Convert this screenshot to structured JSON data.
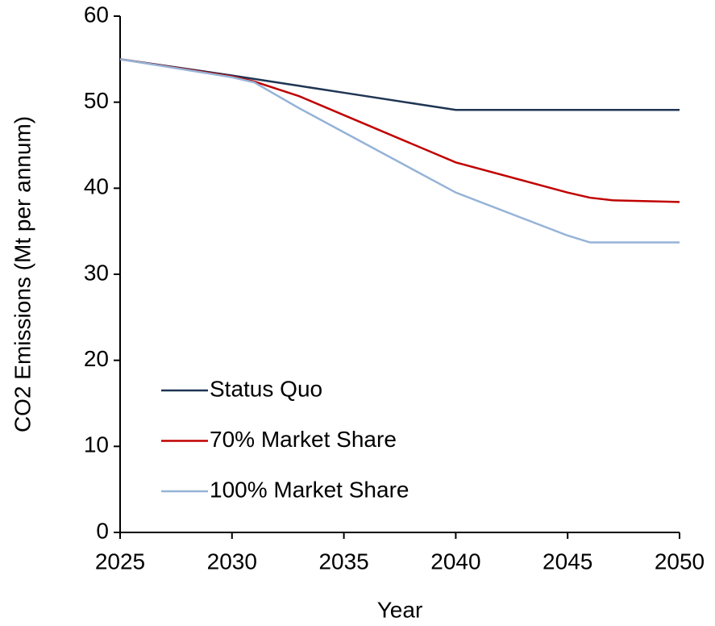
{
  "chart_data": {
    "type": "line",
    "xlabel": "Year",
    "ylabel": "CO2 Emissions (Mt per annum)",
    "x": [
      2025,
      2030,
      2031,
      2033,
      2035,
      2040,
      2045,
      2046,
      2047,
      2050
    ],
    "series": [
      {
        "name": "Status Quo",
        "color": "#1f3553",
        "values": [
          55,
          53.1,
          52.7,
          51.9,
          51.1,
          49.1,
          49.1,
          49.1,
          49.1,
          49.1
        ]
      },
      {
        "name": "70% Market Share",
        "color": "#c00000",
        "values": [
          55,
          53,
          52.4,
          50.7,
          48.5,
          43,
          39.5,
          38.9,
          38.6,
          38.4
        ]
      },
      {
        "name": "100% Market Share",
        "color": "#95b3d7",
        "values": [
          55,
          52.9,
          52.3,
          49.3,
          46.5,
          39.5,
          34.5,
          33.7,
          33.7,
          33.7
        ]
      }
    ],
    "xlim": [
      2025,
      2050
    ],
    "xticks": [
      2025,
      2030,
      2035,
      2040,
      2045,
      2050
    ],
    "ylim": [
      0,
      60
    ],
    "yticks": [
      0,
      10,
      20,
      30,
      40,
      50,
      60
    ],
    "grid": false,
    "legend": "lower left"
  }
}
